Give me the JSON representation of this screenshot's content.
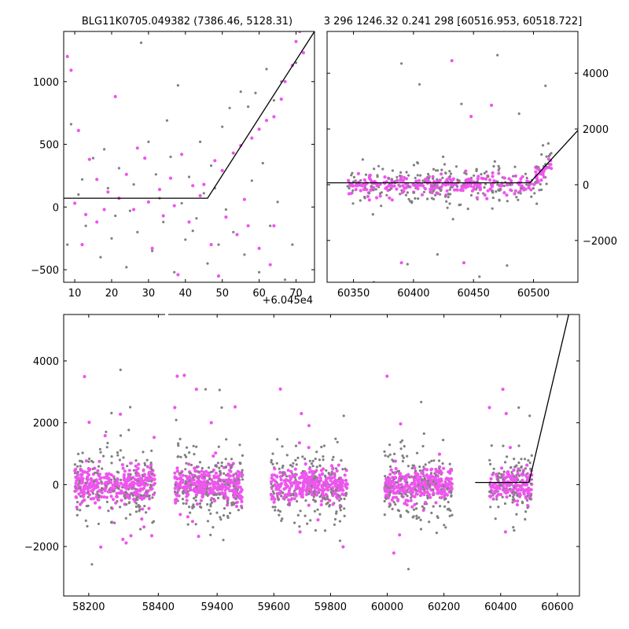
{
  "title_left": "BLG11K0705.049382 (7386.46, 5128.31)",
  "title_right": "3 296 1246.32 0.241 298 [60516.953, 60518.722]",
  "offset_label": "+6.045e4",
  "colors": {
    "gray": "#808080",
    "magenta": "#ee55ee",
    "line": "#000000"
  },
  "chart_data": [
    {
      "type": "scatter",
      "panel": "top-left",
      "x_ticks": [
        "10",
        "20",
        "30",
        "40",
        "50",
        "60",
        "70"
      ],
      "x_tick_values": [
        10,
        20,
        30,
        40,
        50,
        60,
        70
      ],
      "y_ticks": [
        "1000",
        "500",
        "0",
        "−500"
      ],
      "y_tick_values": [
        1000,
        500,
        0,
        -500
      ],
      "xlim": [
        7,
        75
      ],
      "ylim": [
        -600,
        1400
      ],
      "model": [
        [
          7,
          70
        ],
        [
          46,
          70
        ],
        [
          75,
          1400
        ]
      ],
      "gray_points": [
        [
          9,
          660
        ],
        [
          12,
          220
        ],
        [
          15,
          390
        ],
        [
          18,
          460
        ],
        [
          22,
          310
        ],
        [
          26,
          180
        ],
        [
          28,
          1310
        ],
        [
          30,
          520
        ],
        [
          32,
          260
        ],
        [
          35,
          690
        ],
        [
          38,
          970
        ],
        [
          41,
          240
        ],
        [
          44,
          520
        ],
        [
          47,
          330
        ],
        [
          50,
          640
        ],
        [
          52,
          790
        ],
        [
          55,
          920
        ],
        [
          57,
          800
        ],
        [
          59,
          910
        ],
        [
          62,
          1100
        ],
        [
          64,
          850
        ],
        [
          66,
          1000
        ],
        [
          70,
          1150
        ],
        [
          8,
          -300
        ],
        [
          13,
          -150
        ],
        [
          17,
          -400
        ],
        [
          21,
          -70
        ],
        [
          24,
          -480
        ],
        [
          27,
          -200
        ],
        [
          31,
          -350
        ],
        [
          34,
          -120
        ],
        [
          37,
          -520
        ],
        [
          40,
          -260
        ],
        [
          43,
          -90
        ],
        [
          46,
          -450
        ],
        [
          49,
          -300
        ],
        [
          53,
          -200
        ],
        [
          56,
          -380
        ],
        [
          60,
          -520
        ],
        [
          63,
          -150
        ],
        [
          67,
          -580
        ],
        [
          69,
          -300
        ],
        [
          11,
          100
        ],
        [
          19,
          150
        ],
        [
          25,
          -30
        ],
        [
          33,
          70
        ],
        [
          39,
          30
        ],
        [
          45,
          110
        ],
        [
          51,
          -20
        ],
        [
          58,
          210
        ],
        [
          65,
          40
        ],
        [
          20,
          -250
        ],
        [
          36,
          400
        ],
        [
          42,
          -190
        ],
        [
          48,
          150
        ],
        [
          61,
          350
        ]
      ],
      "magenta_points": [
        [
          8,
          1200
        ],
        [
          9,
          1090
        ],
        [
          11,
          610
        ],
        [
          14,
          380
        ],
        [
          16,
          220
        ],
        [
          19,
          120
        ],
        [
          21,
          880
        ],
        [
          24,
          260
        ],
        [
          27,
          470
        ],
        [
          29,
          390
        ],
        [
          33,
          140
        ],
        [
          36,
          230
        ],
        [
          39,
          420
        ],
        [
          42,
          170
        ],
        [
          45,
          180
        ],
        [
          48,
          370
        ],
        [
          50,
          290
        ],
        [
          53,
          430
        ],
        [
          55,
          490
        ],
        [
          58,
          550
        ],
        [
          60,
          620
        ],
        [
          62,
          690
        ],
        [
          64,
          720
        ],
        [
          66,
          860
        ],
        [
          67,
          1000
        ],
        [
          69,
          1130
        ],
        [
          70,
          1320
        ],
        [
          71,
          1400
        ],
        [
          72,
          1230
        ],
        [
          10,
          30
        ],
        [
          13,
          -60
        ],
        [
          18,
          -20
        ],
        [
          22,
          70
        ],
        [
          26,
          -20
        ],
        [
          30,
          40
        ],
        [
          34,
          -70
        ],
        [
          37,
          10
        ],
        [
          41,
          -120
        ],
        [
          44,
          90
        ],
        [
          47,
          -300
        ],
        [
          51,
          -80
        ],
        [
          54,
          -220
        ],
        [
          57,
          -150
        ],
        [
          60,
          -330
        ],
        [
          63,
          -460
        ],
        [
          12,
          -300
        ],
        [
          16,
          -120
        ],
        [
          31,
          -330
        ],
        [
          38,
          -540
        ],
        [
          49,
          -550
        ],
        [
          56,
          60
        ],
        [
          64,
          -150
        ]
      ]
    },
    {
      "type": "scatter",
      "panel": "top-right",
      "x_ticks": [
        "60350",
        "60400",
        "60450",
        "60500"
      ],
      "x_tick_values": [
        60350,
        60400,
        60450,
        60500
      ],
      "y_ticks": [
        "4000",
        "2000",
        "0",
        "−2000"
      ],
      "y_tick_values": [
        4000,
        2000,
        0,
        -2000
      ],
      "xlim": [
        60328,
        60537
      ],
      "ylim": [
        -3500,
        5500
      ],
      "model": [
        [
          60328,
          70
        ],
        [
          60497,
          70
        ],
        [
          60537,
          1950
        ]
      ],
      "spike_points_gray": [
        [
          60390,
          4350
        ],
        [
          60405,
          3600
        ],
        [
          60440,
          2900
        ],
        [
          60470,
          4650
        ],
        [
          60488,
          2550
        ],
        [
          60510,
          3550
        ],
        [
          60367,
          -3500
        ],
        [
          60395,
          -2850
        ],
        [
          60420,
          -2500
        ],
        [
          60455,
          -3300
        ],
        [
          60478,
          -2900
        ]
      ],
      "spike_points_magenta": [
        [
          60432,
          4450
        ],
        [
          60465,
          2850
        ],
        [
          60448,
          2450
        ],
        [
          60390,
          -2800
        ],
        [
          60442,
          -2800
        ]
      ]
    },
    {
      "type": "scatter",
      "panel": "bottom",
      "x_ticks": [
        "58200",
        "58400",
        "59400",
        "59600",
        "59800",
        "60000",
        "60200",
        "60400",
        "60600"
      ],
      "x_tick_values": [
        58200,
        58400,
        59400,
        59600,
        59800,
        60000,
        60200,
        60400,
        60600
      ],
      "y_ticks": [
        "4000",
        "2000",
        "0",
        "−2000"
      ],
      "y_tick_values": [
        4000,
        2000,
        0,
        -2000
      ],
      "ylim": [
        -3600,
        5500
      ],
      "seasons": [
        [
          58160,
          58390
        ],
        [
          59250,
          59490
        ],
        [
          59590,
          59860
        ],
        [
          59990,
          60230
        ],
        [
          60360,
          60510
        ]
      ],
      "model": [
        [
          60310,
          70
        ],
        [
          60500,
          70
        ],
        [
          60640,
          5500
        ]
      ]
    }
  ]
}
